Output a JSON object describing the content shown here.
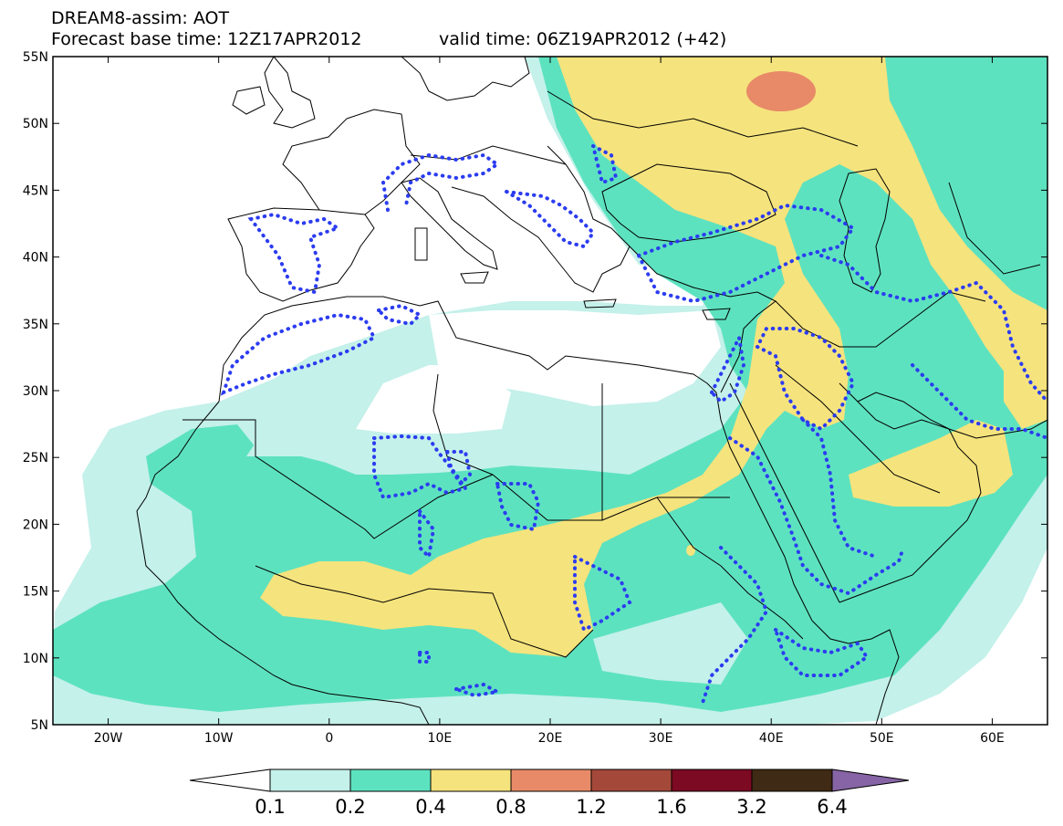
{
  "header": {
    "title": "DREAM8-assim: AOT",
    "base_time": "Forecast base time: 12Z17APR2012",
    "valid_time": "valid time: 06Z19APR2012 (+42)"
  },
  "map": {
    "lon_range": [
      -25,
      65
    ],
    "lat_range": [
      5,
      55
    ],
    "lat_labels": [
      "55N",
      "50N",
      "45N",
      "40N",
      "35N",
      "30N",
      "25N",
      "20N",
      "15N",
      "10N",
      "5N"
    ],
    "lon_labels": [
      "20W",
      "10W",
      "0",
      "10E",
      "20E",
      "30E",
      "40E",
      "50E",
      "60E"
    ]
  },
  "legend": {
    "levels": [
      "0.1",
      "0.2",
      "0.4",
      "0.8",
      "1.2",
      "1.6",
      "3.2",
      "6.4"
    ],
    "colors": [
      "#ffffff",
      "#c4f1ea",
      "#5de2bf",
      "#f5e37d",
      "#e88a68",
      "#a4493a",
      "#7c0a22",
      "#3f2a15",
      "#8664a5"
    ]
  },
  "icons": {
    "dust-contours": "dotted-blue-contour",
    "coastlines": "black-lines"
  }
}
